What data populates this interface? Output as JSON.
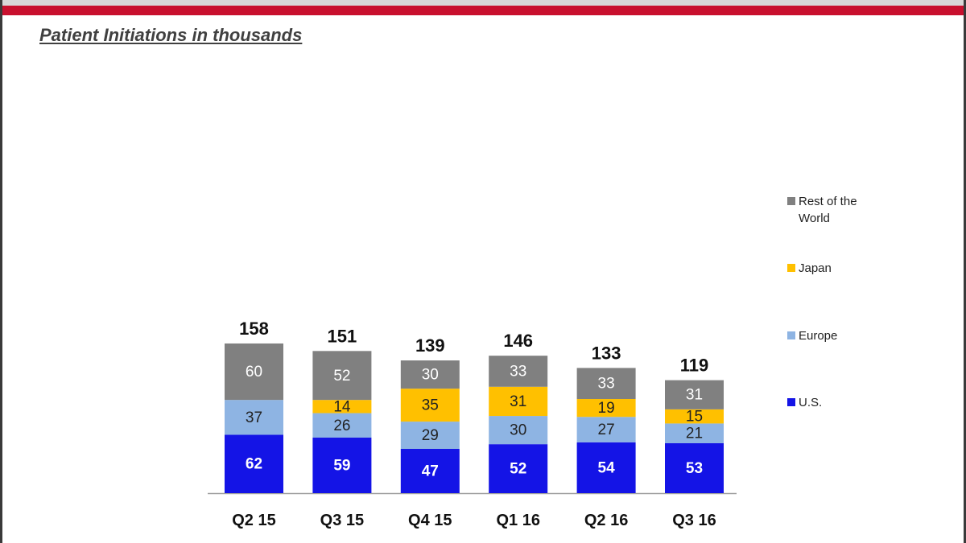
{
  "page": {
    "title": "Patient Initiations in thousands"
  },
  "chart_data": {
    "type": "bar",
    "stacked": true,
    "title": "Patient Initiations in thousands",
    "categories": [
      "Q2 15",
      "Q3 15",
      "Q4 15",
      "Q1 16",
      "Q2 16",
      "Q3 16"
    ],
    "totals": [
      "158",
      "151",
      "139",
      "146",
      "133",
      "119"
    ],
    "series": [
      {
        "name": "U.S.",
        "color": "#1414e6",
        "label_color": "#ffffff",
        "values": [
          62,
          59,
          47,
          52,
          54,
          53
        ]
      },
      {
        "name": "Europe",
        "color": "#8eb4e3",
        "label_color": "#222222",
        "values": [
          37,
          26,
          29,
          30,
          27,
          21
        ]
      },
      {
        "name": "Japan",
        "color": "#ffc000",
        "label_color": "#222222",
        "values": [
          null,
          14,
          35,
          31,
          19,
          15
        ]
      },
      {
        "name": "Rest of the World",
        "color": "#808080",
        "label_color": "#ffffff",
        "values": [
          60,
          52,
          30,
          33,
          33,
          31
        ]
      }
    ],
    "ylim": [
      0,
      180
    ],
    "grid": false,
    "legend_position": "right"
  }
}
